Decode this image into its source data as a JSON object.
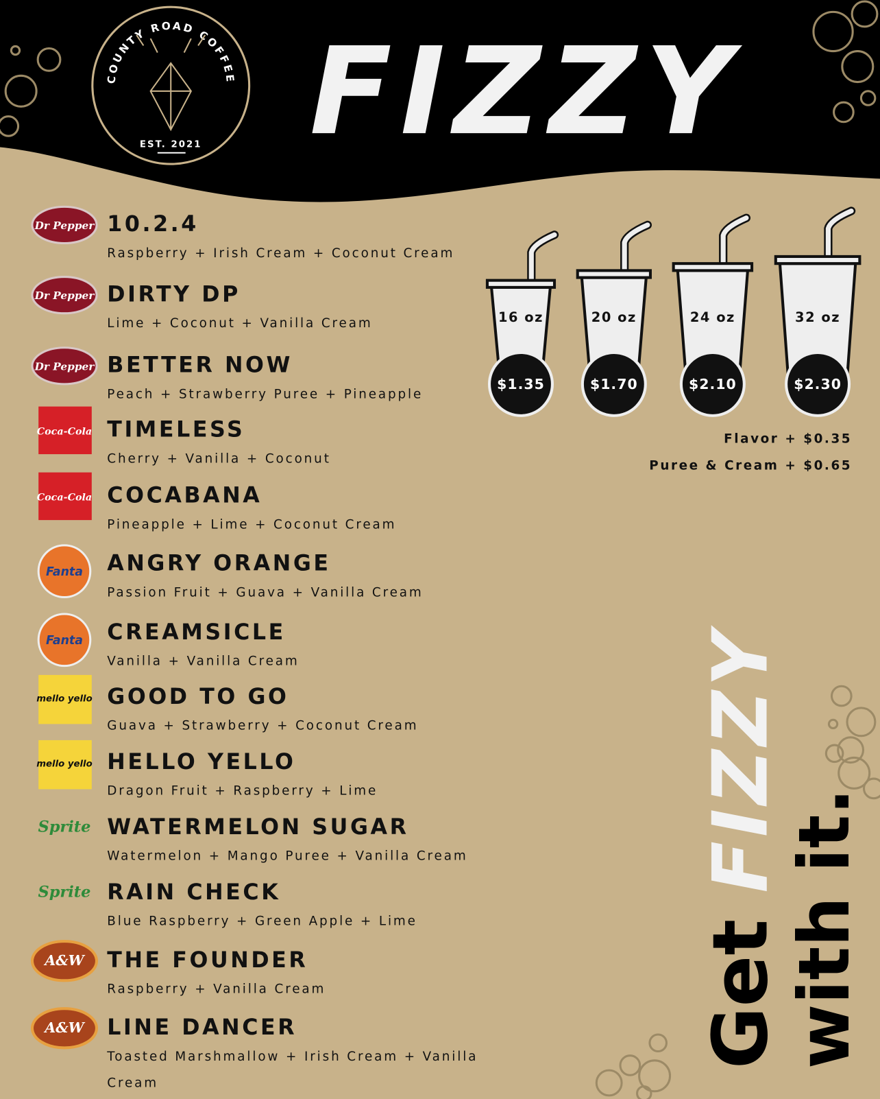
{
  "logo": {
    "name": "COUNTY ROAD COFFEE",
    "est": "EST. 2021"
  },
  "title": "FIZZY",
  "items": [
    {
      "brand": "Dr Pepper",
      "name": "10.2.4",
      "ingredients": "Raspberry + Irish Cream + Coconut Cream"
    },
    {
      "brand": "Dr Pepper",
      "name": "DIRTY DP",
      "ingredients": "Lime + Coconut + Vanilla Cream"
    },
    {
      "brand": "Dr Pepper",
      "name": "BETTER NOW",
      "ingredients": "Peach + Strawberry Puree + Pineapple"
    },
    {
      "brand": "Coca-Cola",
      "name": "TIMELESS",
      "ingredients": "Cherry + Vanilla + Coconut"
    },
    {
      "brand": "Coca-Cola",
      "name": "COCABANA",
      "ingredients": "Pineapple + Lime + Coconut Cream"
    },
    {
      "brand": "Fanta",
      "name": "ANGRY ORANGE",
      "ingredients": "Passion Fruit + Guava + Vanilla Cream"
    },
    {
      "brand": "Fanta",
      "name": "CREAMSICLE",
      "ingredients": "Vanilla + Vanilla Cream"
    },
    {
      "brand": "mello yello",
      "name": "GOOD TO GO",
      "ingredients": "Guava + Strawberry + Coconut Cream"
    },
    {
      "brand": "mello yello",
      "name": "HELLO YELLO",
      "ingredients": "Dragon Fruit + Raspberry + Lime"
    },
    {
      "brand": "Sprite",
      "name": "WATERMELON SUGAR",
      "ingredients": "Watermelon + Mango Puree + Vanilla Cream"
    },
    {
      "brand": "Sprite",
      "name": "RAIN CHECK",
      "ingredients": "Blue Raspberry + Green Apple + Lime"
    },
    {
      "brand": "A&W",
      "name": "THE FOUNDER",
      "ingredients": "Raspberry + Vanilla Cream"
    },
    {
      "brand": "A&W",
      "name": "LINE DANCER",
      "ingredients": "Toasted Marshmallow + Irish Cream + Vanilla Cream"
    }
  ],
  "sizes": [
    {
      "size": "16 oz",
      "price": "$1.35"
    },
    {
      "size": "20 oz",
      "price": "$1.70"
    },
    {
      "size": "24 oz",
      "price": "$2.10"
    },
    {
      "size": "32 oz",
      "price": "$2.30"
    }
  ],
  "addons": [
    "Flavor + $0.35",
    "Puree & Cream + $0.65"
  ],
  "tagline": {
    "get": "Get",
    "fizzy": "FIZZY",
    "with": "with it."
  }
}
